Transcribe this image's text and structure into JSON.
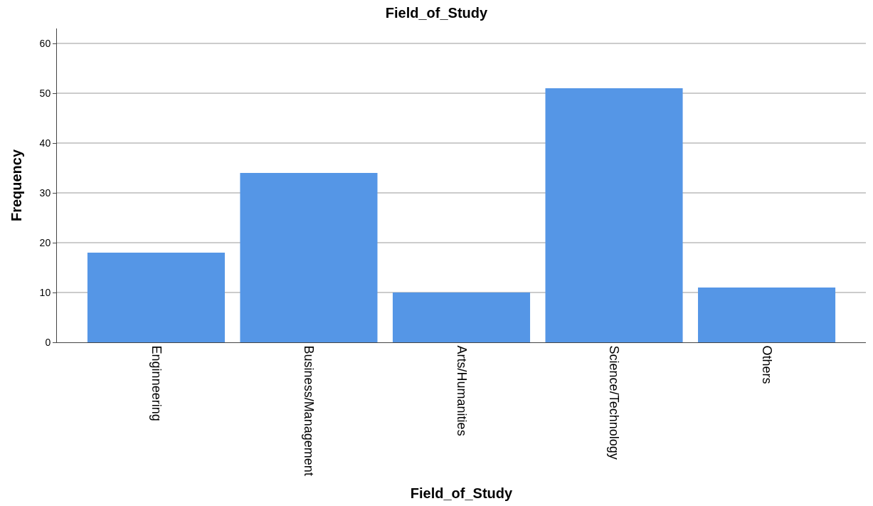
{
  "chart_data": {
    "type": "bar",
    "title": "Field_of_Study",
    "xlabel": "Field_of_Study",
    "ylabel": "Frequency",
    "categories": [
      "Enginneering",
      "Business/Management",
      "Arts/Humanities",
      "Science/Technology",
      "Others"
    ],
    "values": [
      18,
      34,
      10,
      51,
      11
    ],
    "color": "#5596e6",
    "ylim": [
      0,
      63
    ],
    "yticks": [
      0,
      10,
      20,
      30,
      40,
      50,
      60
    ],
    "grid": "y"
  }
}
